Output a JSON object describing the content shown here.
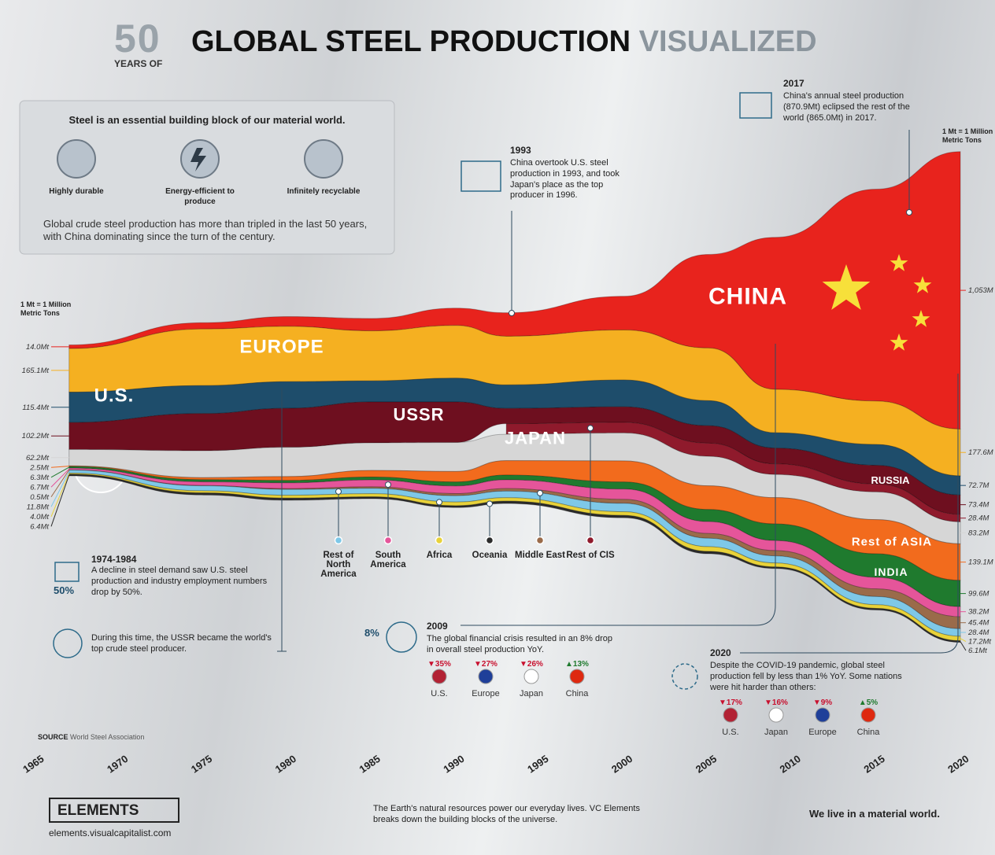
{
  "header": {
    "number": "50",
    "years_of": "YEARS OF",
    "title": "GLOBAL STEEL PRODUCTION",
    "title_accent": "VISUALIZED"
  },
  "intro": {
    "title": "Steel is an essential building block of our material world.",
    "features": [
      "Highly durable",
      "Energy-efficient to produce",
      "Infinitely recyclable"
    ],
    "text": "Global crude steel production has more than tripled in the last 50 years, with China dominating since the turn of the century."
  },
  "chart_data": {
    "type": "streamgraph",
    "unit_note": "1 Mt = 1 Million Metric Tons",
    "xlim": [
      1965,
      2020
    ],
    "xticks": [
      1965,
      1970,
      1975,
      1980,
      1985,
      1990,
      1995,
      2000,
      2005,
      2010,
      2015,
      2020
    ],
    "x": [
      1967,
      1975,
      1980,
      1985,
      1990,
      1993,
      2000,
      2005,
      2009,
      2015,
      2020
    ],
    "series": [
      {
        "name": "CHINA",
        "color": "#e8231d",
        "values": [
          14.0,
          24,
          37,
          47,
          66,
          89,
          128,
          355,
          577,
          804,
          1053
        ],
        "value_labels": [
          "14.0Mt",
          null,
          null,
          null,
          null,
          null,
          null,
          null,
          null,
          null,
          "1,053M"
        ]
      },
      {
        "name": "EUROPE",
        "color": "#f5b021",
        "values": [
          165.1,
          215,
          210,
          190,
          200,
          185,
          190,
          200,
          165,
          165,
          177.6
        ],
        "value_labels": [
          "165.1Mt",
          null,
          null,
          null,
          null,
          null,
          null,
          null,
          null,
          null,
          "177.6M"
        ]
      },
      {
        "name": "U.S.",
        "color": "#1e4d6b",
        "values": [
          115.4,
          106,
          101,
          80,
          90,
          89,
          102,
          95,
          58,
          79,
          72.7
        ],
        "value_labels": [
          "115.4Mt",
          null,
          null,
          null,
          null,
          null,
          null,
          null,
          null,
          null,
          "72.7M"
        ]
      },
      {
        "name": "USSR",
        "late_name": "RUSSIA",
        "color": "#6e0f1f",
        "values": [
          102.2,
          141,
          148,
          155,
          154,
          58,
          59,
          66,
          60,
          71,
          73.4
        ],
        "value_labels": [
          "102.2Mt",
          null,
          null,
          null,
          null,
          null,
          null,
          null,
          null,
          null,
          "73.4M"
        ]
      },
      {
        "name": "Rest of CIS",
        "color": "#8f1a2c",
        "values": [
          null,
          null,
          null,
          null,
          null,
          40,
          40,
          50,
          40,
          30,
          28.4
        ],
        "value_labels": [
          null,
          null,
          null,
          null,
          null,
          null,
          null,
          null,
          null,
          null,
          "28.4M"
        ]
      },
      {
        "name": "JAPAN",
        "color": "#d6d6d6",
        "values": [
          62.2,
          102,
          111,
          105,
          110,
          100,
          106,
          112,
          88,
          105,
          83.2
        ],
        "value_labels": [
          "62.2Mt",
          null,
          null,
          null,
          null,
          null,
          null,
          null,
          null,
          null,
          "83.2M"
        ]
      },
      {
        "name": "Rest of ASIA",
        "color": "#f26b1d",
        "values": [
          2.5,
          8,
          15,
          25,
          40,
          55,
          80,
          90,
          100,
          130,
          139.1
        ],
        "value_labels": [
          "2.5Mt",
          null,
          null,
          null,
          null,
          null,
          null,
          null,
          null,
          null,
          "139.1M"
        ]
      },
      {
        "name": "INDIA",
        "color": "#1f7a2e",
        "values": [
          6.3,
          8,
          9,
          11,
          15,
          18,
          27,
          46,
          63,
          89,
          99.6
        ],
        "value_labels": [
          "6.3Mt",
          null,
          null,
          null,
          null,
          null,
          null,
          null,
          null,
          null,
          "99.6M"
        ]
      },
      {
        "name": "South America",
        "color": "#e5559a",
        "values": [
          6.7,
          14,
          22,
          26,
          29,
          33,
          39,
          45,
          38,
          44,
          38.2
        ],
        "value_labels": [
          "6.7Mt",
          null,
          null,
          null,
          null,
          null,
          null,
          null,
          null,
          null,
          "38.2M"
        ]
      },
      {
        "name": "Middle East",
        "color": "#9a6b4a",
        "values": [
          0.5,
          1,
          3,
          6,
          8,
          10,
          15,
          18,
          20,
          29,
          45.4
        ],
        "value_labels": [
          "0.5Mt",
          null,
          null,
          null,
          null,
          null,
          null,
          null,
          null,
          null,
          "45.4M"
        ]
      },
      {
        "name": "Rest of North America",
        "color": "#7ec8e8",
        "values": [
          11.8,
          19,
          22,
          20,
          24,
          25,
          32,
          32,
          27,
          31,
          28.4
        ],
        "value_labels": [
          "11.8Mt",
          null,
          null,
          null,
          null,
          null,
          null,
          null,
          null,
          null,
          "28.4M"
        ]
      },
      {
        "name": "Africa",
        "color": "#e8d23a",
        "values": [
          4.0,
          8,
          11,
          12,
          14,
          13,
          14,
          18,
          15,
          14,
          17.2
        ],
        "value_labels": [
          "4.0Mt",
          null,
          null,
          null,
          null,
          null,
          null,
          null,
          null,
          null,
          "17.2Mt"
        ]
      },
      {
        "name": "Oceania",
        "color": "#2b2b2b",
        "values": [
          6.4,
          8,
          8,
          7,
          7,
          9,
          9,
          9,
          6,
          6,
          6.1
        ],
        "value_labels": [
          "6.4Mt",
          null,
          null,
          null,
          null,
          null,
          null,
          null,
          null,
          null,
          "6.1Mt"
        ]
      }
    ]
  },
  "annotations": {
    "a1993": {
      "year": "1993",
      "text": "China overtook U.S. steel production in 1993, and took Japan's place as the top producer in 1996."
    },
    "a2017": {
      "year": "2017",
      "text": "China's annual steel production (870.9Mt) eclipsed the rest of the world (865.0Mt) in 2017."
    },
    "a1974": {
      "year": "1974-1984",
      "stat": "50%",
      "text": "A decline in steel demand saw U.S. steel production and industry employment numbers drop by 50%."
    },
    "ussr": {
      "text": "During this time, the USSR became the world's top crude steel producer."
    },
    "a2009": {
      "year": "2009",
      "stat": "8%",
      "text": "The global financial crisis resulted in an 8% drop in overall steel production YoY.",
      "changes": [
        {
          "change": "▼35%",
          "country": "U.S.",
          "flag_color": "#b22234"
        },
        {
          "change": "▼27%",
          "country": "Europe",
          "flag_color": "#1f3f99"
        },
        {
          "change": "▼26%",
          "country": "Japan",
          "flag_color": "#ffffff"
        },
        {
          "change": "▲13%",
          "country": "China",
          "flag_color": "#de2910"
        }
      ]
    },
    "a2020": {
      "year": "2020",
      "text": "Despite the COVID-19 pandemic, global steel production fell by less than 1% YoY. Some nations were hit harder than others:",
      "changes": [
        {
          "change": "▼17%",
          "country": "U.S.",
          "flag_color": "#b22234"
        },
        {
          "change": "▼16%",
          "country": "Japan",
          "flag_color": "#ffffff"
        },
        {
          "change": "▼9%",
          "country": "Europe",
          "flag_color": "#1f3f99"
        },
        {
          "change": "▲5%",
          "country": "China",
          "flag_color": "#de2910"
        }
      ]
    }
  },
  "source": {
    "label": "SOURCE",
    "text": "World Steel Association"
  },
  "footer": {
    "brand": "ELEMENTS",
    "url": "elements.visualcapitalist.com",
    "text": "The Earth's natural resources power our everyday lives. VC Elements breaks down the building blocks of the universe.",
    "tagline": "We live in a material world."
  }
}
